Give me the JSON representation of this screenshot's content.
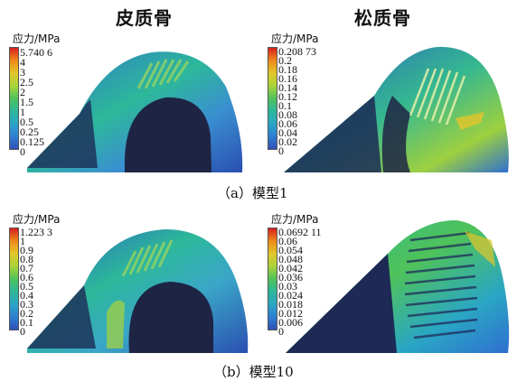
{
  "headers": {
    "cortical": "皮质骨",
    "cancellous": "松质骨"
  },
  "captions": {
    "a": "（a）模型1",
    "b": "（b）模型10"
  },
  "panels": [
    {
      "legend_title": "应力/MPa",
      "ticks": [
        "5.740 6",
        "4",
        "3",
        "2.5",
        "2",
        "1.5",
        "1",
        "0.5",
        "0.25",
        "0.125",
        "0"
      ]
    },
    {
      "legend_title": "应力/MPa",
      "ticks": [
        "0.208 73",
        "0.2",
        "0.18",
        "0.16",
        "0.14",
        "0.12",
        "0.1",
        "0.08",
        "0.06",
        "0.04",
        "0.02",
        "0"
      ]
    },
    {
      "legend_title": "应力/MPa",
      "ticks": [
        "1.223 3",
        "1",
        "0.9",
        "0.8",
        "0.7",
        "0.6",
        "0.5",
        "0.4",
        "0.3",
        "0.2",
        "0.1",
        "0"
      ]
    },
    {
      "legend_title": "应力/MPa",
      "ticks": [
        "0.0692 11",
        "0.06",
        "0.054",
        "0.048",
        "0.042",
        "0.036",
        "0.03",
        "0.024",
        "0.018",
        "0.012",
        "0.006",
        "0"
      ]
    }
  ],
  "colors": {
    "colorbar": [
      "#d81f1f",
      "#ef8a1a",
      "#e2c62a",
      "#a8d43a",
      "#4fc25a",
      "#2db89a",
      "#2aa6c4",
      "#2f7fd2",
      "#2f4fb8"
    ],
    "background_stress": "#2a55b8",
    "bone_dark": "#1c2a55",
    "cavity": "#1e2444"
  }
}
